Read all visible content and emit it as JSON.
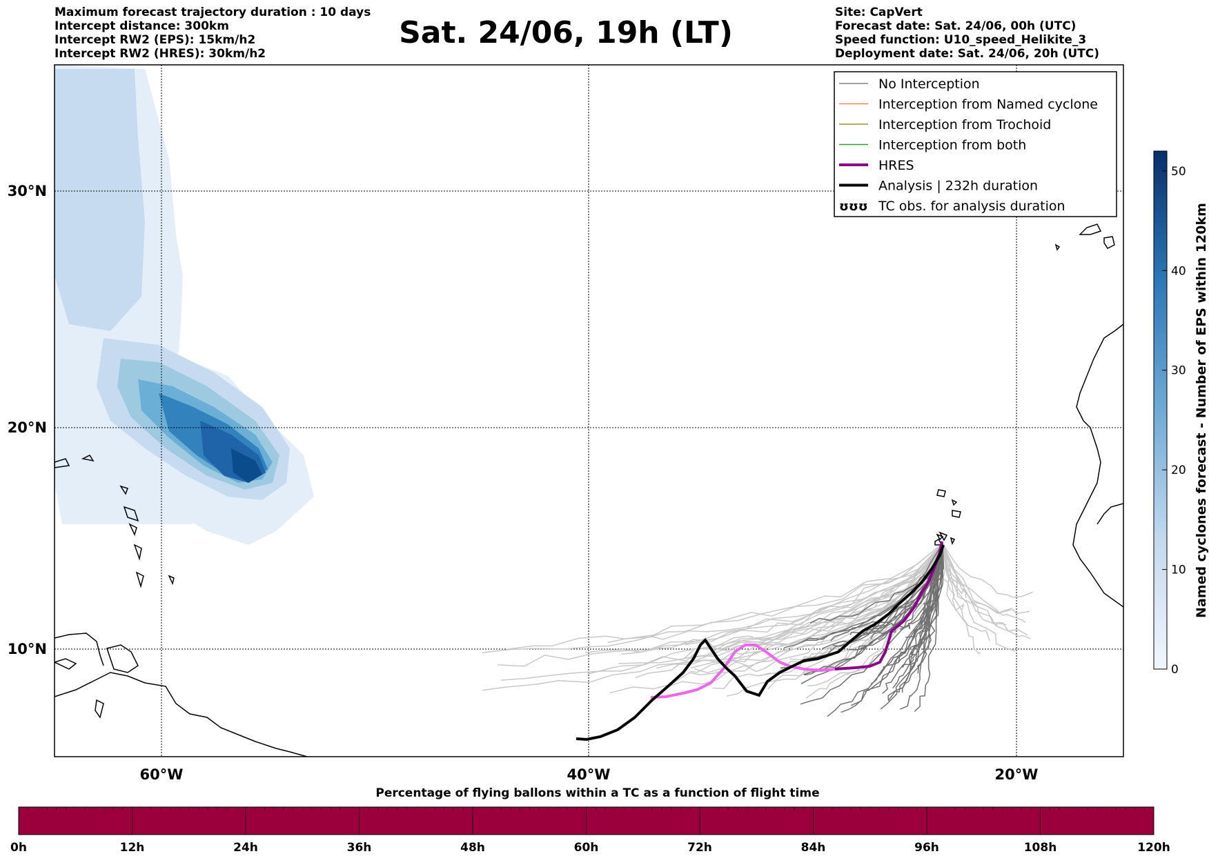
{
  "header": {
    "title": "Sat. 24/06, 19h (LT)",
    "left_lines": [
      "Maximum forecast trajectory duration : 10 days",
      "Intercept distance: 300km",
      "Intercept RW2 (EPS):  15km/h2",
      "Intercept RW2 (HRES): 30km/h2"
    ],
    "right_lines": [
      "Site: CapVert",
      "Forecast date: Sat. 24/06, 00h (UTC)",
      "Speed function: U10_speed_Helikite_3",
      "Deployment date: Sat. 24/06, 20h (UTC)"
    ]
  },
  "map": {
    "lon_range": [
      -65,
      -15
    ],
    "lat_range": [
      5.4,
      34.8
    ],
    "lat_ticks": [
      "30°N",
      "20°N",
      "10°N"
    ],
    "lon_ticks": [
      "60°W",
      "40°W",
      "20°W"
    ],
    "colors": {
      "analysis": "#000000",
      "hres_dark": "#8b008b",
      "hres_light": "#ee66ee",
      "no_interception": "#777777"
    }
  },
  "legend": {
    "items": [
      {
        "label": "No Interception",
        "color": "#808080"
      },
      {
        "label": "Interception from Named cyclone",
        "color": "#ff7f50"
      },
      {
        "label": "Interception from Trochoid",
        "color": "#9c8f2e"
      },
      {
        "label": "Interception from both",
        "color": "#2ca02c"
      },
      {
        "label": "HRES",
        "color": "#8b008b"
      },
      {
        "label": "Analysis | 232h duration",
        "color": "#000000"
      },
      {
        "label": "TC obs. for analysis duration",
        "symbol": "ʊʊʊ"
      }
    ]
  },
  "colorbar": {
    "label": "Named cyclones forecast - Number of EPS within 120km",
    "ticks": [
      "0",
      "10",
      "20",
      "30",
      "40",
      "50"
    ],
    "min": 0,
    "max": 52
  },
  "timebar": {
    "title": "Percentage of flying ballons within a TC as a function of flight time",
    "ticks": [
      "0h",
      "12h",
      "24h",
      "36h",
      "48h",
      "60h",
      "72h",
      "84h",
      "96h",
      "108h",
      "120h"
    ],
    "color": "#9c003c"
  }
}
